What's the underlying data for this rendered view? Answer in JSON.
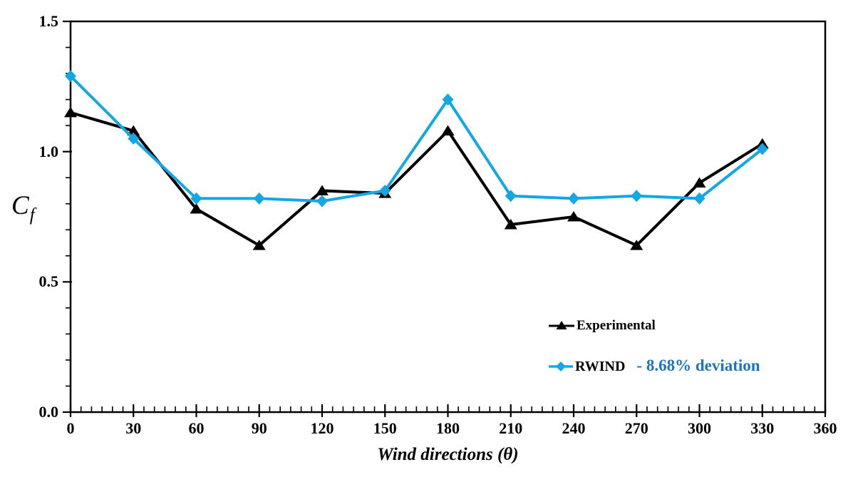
{
  "chart_data": {
    "type": "line",
    "x": [
      0,
      30,
      60,
      90,
      120,
      150,
      180,
      210,
      240,
      270,
      300,
      330
    ],
    "series": [
      {
        "name": "Experimental",
        "marker": "triangle",
        "color": "#000000",
        "values": [
          1.15,
          1.08,
          0.78,
          0.64,
          0.85,
          0.84,
          1.08,
          0.72,
          0.75,
          0.64,
          0.88,
          1.03
        ]
      },
      {
        "name": "RWIND",
        "marker": "diamond",
        "color": "#14A7E5",
        "deviation_label": "- 8.68% deviation",
        "deviation_color": "#1B74C4",
        "values": [
          1.29,
          1.05,
          0.82,
          0.82,
          0.81,
          0.85,
          1.2,
          0.83,
          0.82,
          0.83,
          0.82,
          1.01
        ]
      }
    ],
    "title": "",
    "xlabel": "Wind directions (θ)",
    "ylabel": "Cf",
    "xlim": [
      0,
      360
    ],
    "ylim": [
      0,
      1.5
    ],
    "x_major_ticks": [
      0,
      30,
      60,
      90,
      120,
      150,
      180,
      210,
      240,
      270,
      300,
      330,
      360
    ],
    "x_minor_step": 5,
    "y_major_ticks": [
      0.0,
      0.5,
      1.0,
      1.5
    ],
    "y_minor_step": 0.1,
    "y_tick_decimals": 1,
    "grid": false,
    "legend_position": "inside-lower-right",
    "axis_color": "#000000",
    "background_color": "#FFFFFF"
  },
  "labels": {
    "ylabel_main": "C",
    "ylabel_sub": "f"
  }
}
